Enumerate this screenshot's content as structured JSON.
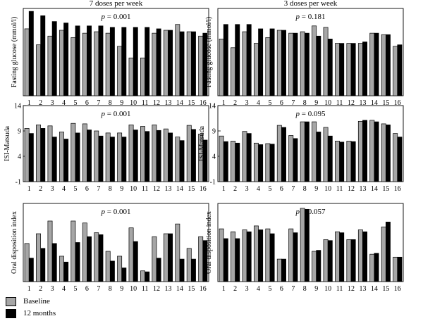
{
  "chart_data": [
    {
      "type": "bar",
      "column_title": "7 doses per week",
      "ylabel": "Fasting glucose (mmol/l)",
      "ptext": "p = 0.001",
      "ylim": [
        0,
        6
      ],
      "yticks": [],
      "categories": [
        "1",
        "2",
        "3",
        "4",
        "5",
        "6",
        "7",
        "8",
        "9",
        "10",
        "11",
        "12",
        "13",
        "14",
        "15",
        "16"
      ],
      "series": [
        {
          "name": "Baseline",
          "values": [
            4.6,
            3.5,
            4.1,
            4.5,
            4.0,
            4.3,
            4.4,
            4.3,
            3.4,
            2.6,
            2.6,
            4.3,
            4.5,
            4.9,
            4.4,
            4.1
          ]
        },
        {
          "name": "12 months",
          "values": [
            5.8,
            5.5,
            5.1,
            5.0,
            4.8,
            4.8,
            4.8,
            4.7,
            4.7,
            4.7,
            4.7,
            4.6,
            4.5,
            4.4,
            4.4,
            4.3
          ]
        }
      ]
    },
    {
      "type": "bar",
      "column_title": "3 doses per week",
      "ylabel": "Fasting glucose (mmol/l)",
      "ptext": "p = 0.181",
      "ylim": [
        0,
        6
      ],
      "yticks": [],
      "categories": [
        "1",
        "2",
        "3",
        "4",
        "5",
        "6",
        "7",
        "8",
        "9",
        "10",
        "11",
        "12",
        "13",
        "14",
        "15",
        "16"
      ],
      "series": [
        {
          "name": "Baseline",
          "values": [
            3.9,
            3.3,
            4.4,
            3.6,
            4.0,
            4.5,
            4.3,
            4.4,
            4.8,
            4.7,
            3.6,
            3.6,
            3.6,
            4.3,
            4.2,
            3.4
          ]
        },
        {
          "name": "12 months",
          "values": [
            4.9,
            4.9,
            4.9,
            4.6,
            4.6,
            4.5,
            4.3,
            4.3,
            4.1,
            3.9,
            3.6,
            3.6,
            3.7,
            4.3,
            4.2,
            3.5
          ]
        }
      ]
    },
    {
      "type": "bar",
      "column_title": "",
      "ylabel": "ISI-Matsuda",
      "ptext": "p = 0.001",
      "ylim": [
        -1,
        14
      ],
      "yticks": [
        "-1",
        "4",
        "9",
        "14"
      ],
      "categories": [
        "1",
        "2",
        "3",
        "4",
        "5",
        "6",
        "7",
        "8",
        "9",
        "10",
        "11",
        "12",
        "13",
        "14",
        "15",
        "16"
      ],
      "series": [
        {
          "name": "Baseline",
          "values": [
            9.5,
            10.2,
            10.0,
            8.8,
            10.5,
            10.4,
            9.0,
            8.6,
            8.6,
            10.2,
            9.9,
            10.2,
            9.4,
            7.8,
            10.1,
            8.4
          ]
        },
        {
          "name": "12 months",
          "values": [
            8.5,
            9.5,
            7.8,
            7.4,
            8.6,
            9.2,
            8.0,
            7.8,
            7.8,
            9.2,
            8.9,
            9.1,
            8.6,
            7.1,
            9.3,
            7.2
          ]
        }
      ]
    },
    {
      "type": "bar",
      "column_title": "",
      "ylabel": "ISI-Matsuda",
      "ptext": "p = 0.095",
      "ylim": [
        -1,
        14
      ],
      "yticks": [
        "-1",
        "4",
        "9",
        "14"
      ],
      "categories": [
        "1",
        "2",
        "3",
        "4",
        "5",
        "6",
        "7",
        "8",
        "9",
        "10",
        "11",
        "12",
        "13",
        "14",
        "15",
        "16"
      ],
      "series": [
        {
          "name": "Baseline",
          "values": [
            8.0,
            7.0,
            8.9,
            6.6,
            6.5,
            10.1,
            8.1,
            10.8,
            10.8,
            9.7,
            7.0,
            7.0,
            10.9,
            11.1,
            10.4,
            8.5
          ]
        },
        {
          "name": "12 months",
          "values": [
            6.9,
            6.6,
            8.5,
            6.3,
            6.4,
            9.7,
            7.5,
            10.8,
            8.8,
            8.0,
            6.8,
            6.9,
            11.1,
            10.8,
            10.2,
            7.8
          ]
        }
      ]
    },
    {
      "type": "bar",
      "column_title": "",
      "ylabel": "Oral disposition index",
      "ptext": "p = 0.001",
      "ylim": [
        0,
        8
      ],
      "yticks": [],
      "categories": [
        "1",
        "2",
        "3",
        "4",
        "5",
        "6",
        "7",
        "8",
        "9",
        "10",
        "11",
        "12",
        "13",
        "14",
        "15",
        "16"
      ],
      "series": [
        {
          "name": "Baseline",
          "values": [
            3.9,
            4.9,
            6.2,
            2.6,
            6.2,
            6.0,
            5.0,
            3.1,
            2.6,
            5.5,
            1.1,
            4.6,
            4.9,
            5.9,
            3.4,
            4.6
          ]
        },
        {
          "name": "12 months",
          "values": [
            2.4,
            3.4,
            3.9,
            2.0,
            4.0,
            4.6,
            4.8,
            2.1,
            1.4,
            4.1,
            1.0,
            2.4,
            4.9,
            2.3,
            2.3,
            4.2
          ]
        }
      ]
    },
    {
      "type": "bar",
      "column_title": "",
      "ylabel": "Oral disposition index",
      "ptext": "p = 0.057",
      "ylim": [
        0,
        8
      ],
      "yticks": [],
      "categories": [
        "1",
        "2",
        "3",
        "4",
        "5",
        "6",
        "7",
        "8",
        "9",
        "10",
        "11",
        "12",
        "13",
        "14",
        "15",
        "16"
      ],
      "series": [
        {
          "name": "Baseline",
          "values": [
            5.4,
            5.1,
            5.3,
            5.7,
            5.4,
            2.3,
            5.4,
            7.5,
            3.1,
            4.3,
            5.1,
            4.3,
            5.3,
            2.8,
            5.6,
            2.5
          ]
        },
        {
          "name": "12 months",
          "values": [
            4.4,
            4.4,
            5.1,
            5.3,
            4.9,
            2.3,
            5.0,
            7.4,
            3.2,
            4.2,
            5.0,
            4.3,
            5.1,
            2.9,
            6.1,
            2.5
          ]
        }
      ]
    }
  ],
  "legend": {
    "baseline_label": "Baseline",
    "months_label": "12 months",
    "baseline_color": "#a6a6a6",
    "months_color": "#000000"
  }
}
